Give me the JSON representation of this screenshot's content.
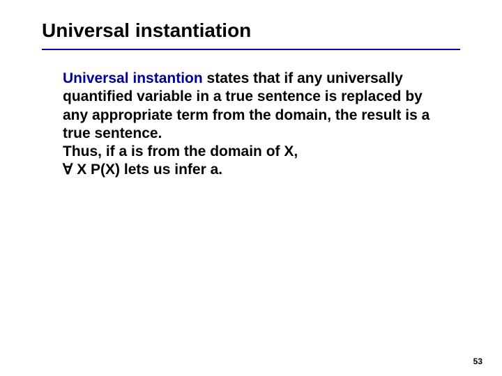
{
  "title": "Universal instantiation",
  "divider_color": "#000099",
  "body": {
    "keyword": "Universal instantion",
    "keyword_color": "#000099",
    "rest1": " states that if any universally quantified variable in a true sentence is replaced by any appropriate term from the domain, the result is a true sentence.",
    "line2": "Thus, if a is from the domain of X,",
    "line3_symbol": "∀",
    "line3_rest": " X P(X) lets us infer a."
  },
  "page_number": "53"
}
